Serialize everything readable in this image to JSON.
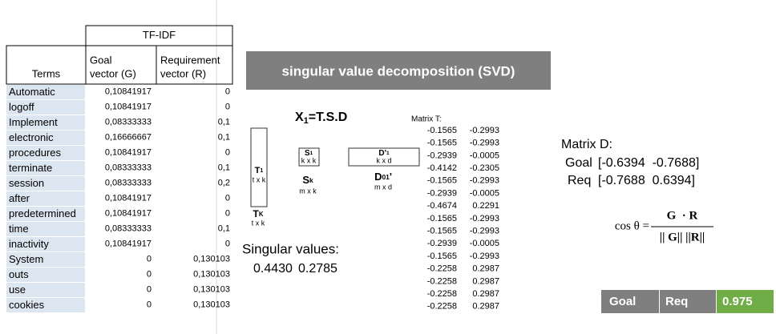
{
  "table": {
    "group_header": "TF-IDF",
    "headers": [
      [
        "Terms"
      ],
      [
        "Goal",
        "vector (G)"
      ],
      [
        "Requirement",
        "vector (R)"
      ]
    ],
    "rows": [
      [
        "Automatic",
        "0,10841917",
        "0"
      ],
      [
        "logoff",
        "0,10841917",
        "0"
      ],
      [
        "Implement",
        "0,08333333",
        "0,1"
      ],
      [
        "electronic",
        "0,16666667",
        "0,1"
      ],
      [
        "procedures",
        "0,10841917",
        "0"
      ],
      [
        "terminate",
        "0,08333333",
        "0,1"
      ],
      [
        "session",
        "0,08333333",
        "0,2"
      ],
      [
        "after",
        "0,10841917",
        "0"
      ],
      [
        "predetermined",
        "0,10841917",
        "0"
      ],
      [
        "time",
        "0,08333333",
        "0,1"
      ],
      [
        "inactivity",
        "0,10841917",
        "0"
      ],
      [
        "System",
        "0",
        "0,130103"
      ],
      [
        "outs",
        "0",
        "0,130103"
      ],
      [
        "use",
        "0",
        "0,130103"
      ],
      [
        "cookies",
        "0",
        "0,130103"
      ]
    ]
  },
  "banner": "singular value decomposition (SVD)",
  "equation": {
    "lhs": "X",
    "sub": "1",
    "rhs": "=T.S.D"
  },
  "diagram": {
    "t1": {
      "main": "T",
      "sub": "1",
      "dims": "t x k"
    },
    "tk": {
      "main": "T",
      "sub": "K",
      "dims": "t x k"
    },
    "s1": {
      "main": "S",
      "sub": "1",
      "dims": "k x k"
    },
    "sk": {
      "main": "S",
      "sub": "k",
      "dims": "m x k"
    },
    "d1": {
      "main": "D'",
      "sub": "1",
      "dims": "k x d"
    },
    "d01": {
      "main": "D",
      "sub": "01",
      "tail": "'",
      "dims": "m x d"
    }
  },
  "singular_values": {
    "label": "Singular values:",
    "values": [
      "0.4430",
      "0.2785"
    ]
  },
  "matrix_t": {
    "title": "Matrix T:",
    "rows": [
      [
        "-0.1565",
        "-0.2993"
      ],
      [
        "-0.1565",
        "-0.2993"
      ],
      [
        "-0.2939",
        "-0.0005"
      ],
      [
        "-0.4142",
        "-0.2305"
      ],
      [
        "-0.1565",
        "-0.2993"
      ],
      [
        "-0.2939",
        "-0.0005"
      ],
      [
        "-0.4674",
        "0.2291"
      ],
      [
        "-0.1565",
        "-0.2993"
      ],
      [
        "-0.1565",
        "-0.2993"
      ],
      [
        "-0.2939",
        "-0.0005"
      ],
      [
        "-0.1565",
        "-0.2993"
      ],
      [
        "-0.2258",
        "0.2987"
      ],
      [
        "-0.2258",
        "0.2987"
      ],
      [
        "-0.2258",
        "0.2987"
      ],
      [
        "-0.2258",
        "0.2987"
      ]
    ]
  },
  "matrix_d": {
    "title": "Matrix D:",
    "rows": [
      {
        "label": "Goal",
        "text": "[-0.6394  -0.7688]"
      },
      {
        "label": "Req",
        "text": "[-0.7688  0.6394]"
      }
    ]
  },
  "formula": {
    "lhs": "cos θ =",
    "numerator": "G  · R",
    "denominator": "|| G|| ||R||"
  },
  "result": [
    "Goal",
    "Req",
    "0.975"
  ]
}
